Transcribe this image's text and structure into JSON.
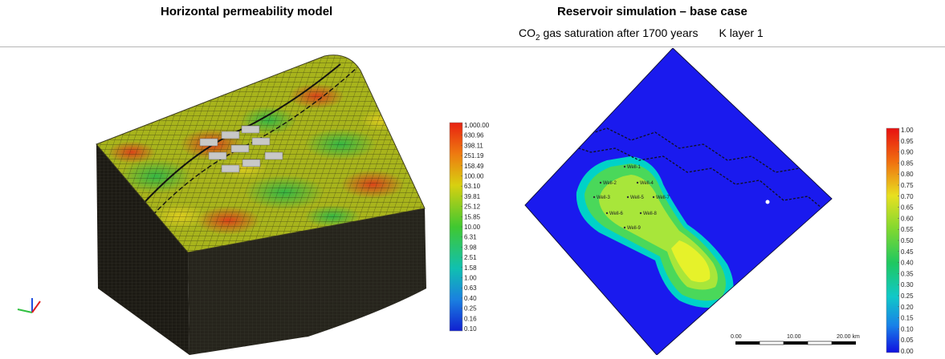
{
  "left_panel": {
    "title": "Horizontal permeability model",
    "colorbar_ticks": [
      "1,000.00",
      "630.96",
      "398.11",
      "251.19",
      "158.49",
      "100.00",
      "63.10",
      "39.81",
      "25.12",
      "15.85",
      "10.00",
      "6.31",
      "3.98",
      "2.51",
      "1.58",
      "1.00",
      "0.63",
      "0.40",
      "0.25",
      "0.16",
      "0.10"
    ],
    "colors": {
      "high": "#e02a10",
      "mid": "#c8c800",
      "low": "#1030d0",
      "block_side": "#1e1c16"
    }
  },
  "right_panel": {
    "title": "Reservoir simulation – base case",
    "subtitle_pre": "CO",
    "subtitle_sub": "2",
    "subtitle_post": " gas saturation after 1700 years",
    "subtitle_layer": "K layer 1",
    "colorbar_ticks": [
      "1.00",
      "0.95",
      "0.90",
      "0.85",
      "0.80",
      "0.75",
      "0.70",
      "0.65",
      "0.60",
      "0.55",
      "0.50",
      "0.45",
      "0.40",
      "0.35",
      "0.30",
      "0.25",
      "0.20",
      "0.15",
      "0.10",
      "0.05",
      "0.00"
    ],
    "wells": [
      "Well-1",
      "Well-2",
      "Well-4",
      "Well-3",
      "Well-5",
      "Well-7",
      "Well-6",
      "Well-8",
      "Well-9"
    ],
    "scale_bar": {
      "labels": [
        "0.00",
        "10.00",
        "20.00 km"
      ]
    },
    "colors": {
      "background": "#1a1aee",
      "plume_outer": "#00d2c8",
      "plume_mid": "#4ad85a",
      "plume_core": "#e6f22a"
    }
  }
}
